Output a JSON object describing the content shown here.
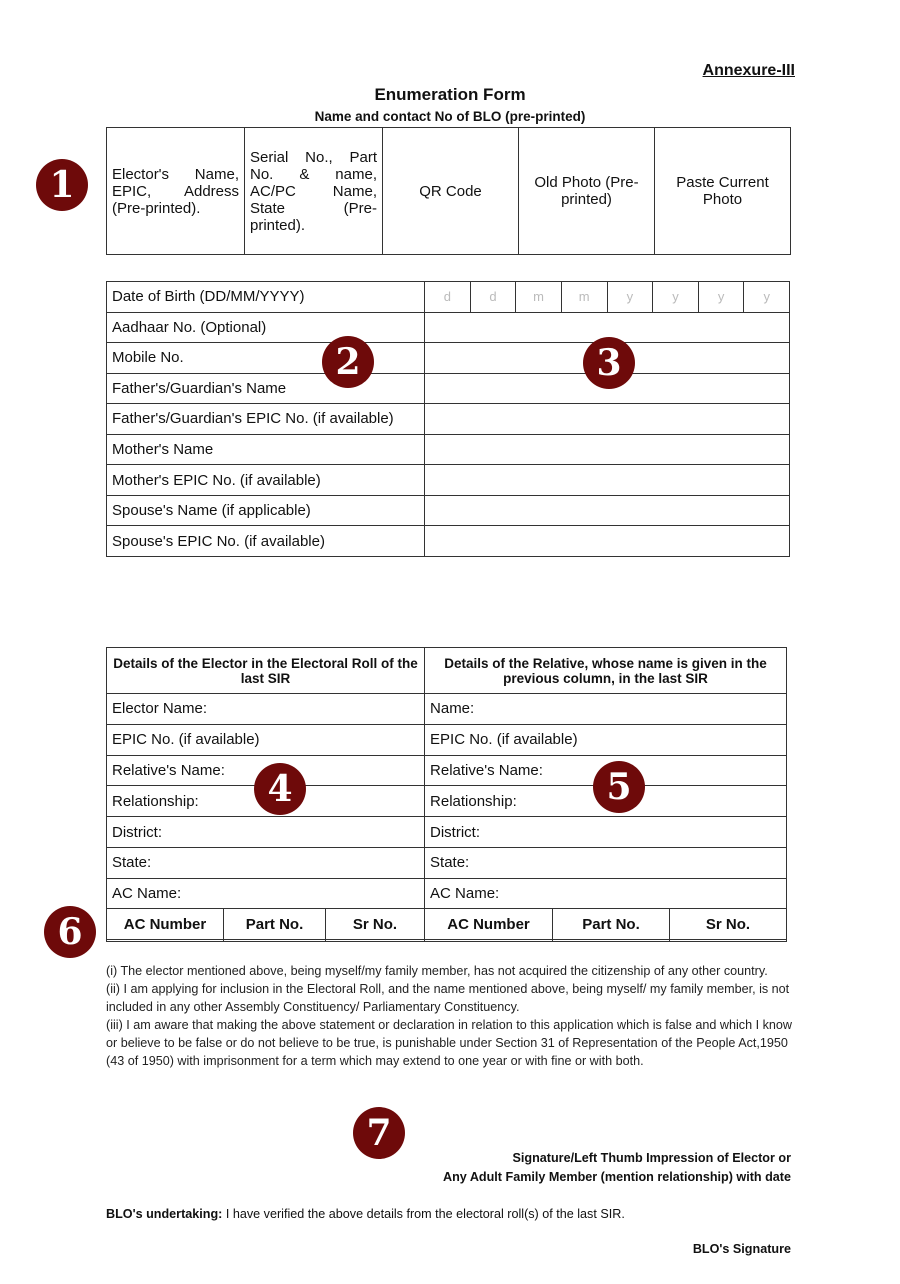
{
  "annexure": "Annexure-III",
  "title": "Enumeration Form",
  "subtitle": "Name and contact No of BLO (pre-printed)",
  "header_cells": [
    "Elector's Name, EPIC, Address (Pre-printed).",
    "Serial No., Part No. & name, AC/PC Name, State (Pre-printed).",
    "QR Code",
    "Old Photo (Pre-printed)",
    "Paste Current Photo"
  ],
  "personal_fields": [
    "Date of Birth (DD/MM/YYYY)",
    "Aadhaar No. (Optional)",
    "Mobile No.",
    "Father's/Guardian's Name",
    "Father's/Guardian's EPIC No. (if available)",
    "Mother's Name",
    "Mother's EPIC No. (if available)",
    "Spouse's Name (if applicable)",
    "Spouse's EPIC No. (if available)"
  ],
  "dob_placeholders": [
    "d",
    "d",
    "m",
    "m",
    "y",
    "y",
    "y",
    "y"
  ],
  "sir": {
    "left_header": "Details of the Elector in the Electoral Roll of the last SIR",
    "right_header": "Details of the Relative, whose name is given in the previous column, in the last SIR",
    "left_rows": [
      "Elector Name:",
      "EPIC No. (if available)",
      "Relative's Name:",
      "Relationship:",
      "District:",
      "State:",
      "AC Name:"
    ],
    "right_rows": [
      "Name:",
      "EPIC No. (if available)",
      "Relative's Name:",
      "Relationship:",
      "District:",
      "State:",
      "AC Name:"
    ],
    "sub_headers": [
      "AC Number",
      "Part No.",
      "Sr No.",
      "AC Number",
      "Part No.",
      "Sr No."
    ]
  },
  "declarations": [
    "(i) The elector mentioned above, being myself/my family member, has not acquired the citizenship of any other country.",
    "(ii) I am applying for inclusion in the Electoral Roll, and the name mentioned above, being myself/ my family member, is not included in any other Assembly Constituency/ Parliamentary Constituency.",
    "(iii) I am aware that making the above statement or declaration in relation to this application which is false and which I know or believe to be false or do not believe to be true, is punishable under Section 31 of Representation of the People Act,1950 (43 of 1950) with imprisonment for a term which may extend to one year or with fine or with both."
  ],
  "signature_line1": "Signature/Left Thumb Impression of Elector or",
  "signature_line2": "Any Adult Family Member (mention relationship) with date",
  "blo_undertaking_label": "BLO's undertaking:",
  "blo_undertaking_text": " I have verified the above details from the electoral roll(s) of the last SIR.",
  "blo_signature": "BLO's Signature",
  "markers": [
    "1",
    "2",
    "3",
    "4",
    "5",
    "6",
    "7"
  ],
  "marker_color": "#6e0a0a"
}
